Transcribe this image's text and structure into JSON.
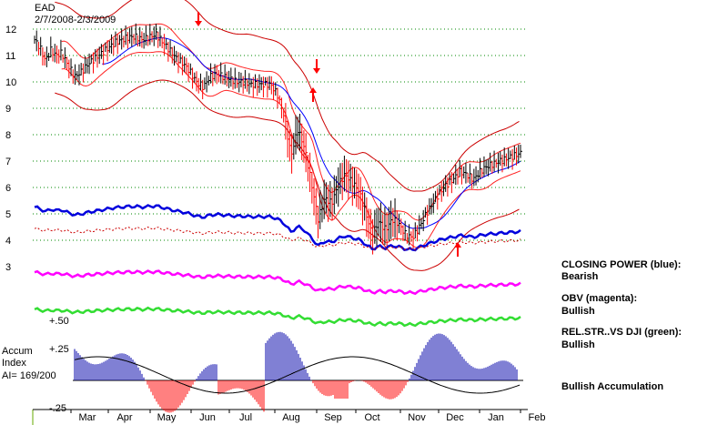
{
  "chart_data": {
    "type": "line",
    "title": "EAD",
    "subtitle": "2/7/2008-2/3/2009",
    "price_ticks": [
      "12",
      "11",
      "10",
      "9",
      "8",
      "7",
      "6",
      "5",
      "4",
      "3"
    ],
    "price_ylim": [
      3,
      12
    ],
    "x_months": [
      "Mar",
      "Apr",
      "May",
      "Jun",
      "Jul",
      "Aug",
      "Sep",
      "Oct",
      "Nov",
      "Dec",
      "Jan",
      "Feb"
    ],
    "grid": true,
    "price_series": {
      "name": "EAD",
      "x_day": [
        0,
        4,
        8,
        12,
        16,
        20,
        25,
        30,
        35,
        40,
        45,
        50,
        55,
        60,
        65,
        70,
        75,
        80,
        85,
        90,
        95,
        100,
        105,
        110,
        115,
        120,
        125,
        130,
        135,
        140,
        145,
        150,
        155,
        160,
        165,
        170,
        175,
        180,
        185,
        190,
        195,
        200,
        205,
        210,
        215,
        220,
        225,
        230,
        235,
        240,
        245,
        250,
        255,
        260,
        265,
        270,
        275,
        280,
        285,
        290,
        295,
        300,
        305,
        310,
        315,
        320,
        325,
        330,
        335,
        340,
        345,
        350,
        355,
        360
      ],
      "values": [
        11.6,
        11.3,
        10.8,
        11.2,
        11.0,
        11.1,
        10.6,
        10.2,
        10.4,
        10.7,
        10.9,
        11.1,
        11.3,
        11.5,
        11.6,
        11.7,
        11.7,
        11.6,
        11.7,
        11.8,
        11.5,
        11.2,
        10.9,
        10.7,
        10.4,
        10.0,
        9.8,
        10.2,
        10.3,
        10.2,
        10.1,
        10.0,
        10.0,
        9.9,
        9.9,
        9.9,
        9.9,
        9.5,
        8.7,
        7.2,
        8.2,
        7.5,
        6.2,
        4.8,
        5.6,
        5.4,
        6.1,
        6.5,
        6.2,
        5.9,
        5.1,
        4.2,
        4.7,
        4.4,
        4.8,
        4.6,
        4.2,
        4.1,
        4.5,
        5.0,
        5.4,
        5.8,
        6.1,
        6.3,
        6.6,
        6.5,
        6.3,
        6.6,
        6.8,
        6.9,
        7.0,
        7.1,
        7.2,
        7.3
      ]
    },
    "series": [
      {
        "name": "CLOSING POWER (blue)",
        "color": "#0000dd"
      },
      {
        "name": "OBV (magenta)",
        "color": "#ff00ff"
      },
      {
        "name": "REL.STR..VS DJI (green)",
        "color": "#33dd33"
      }
    ],
    "band_colors": {
      "outer": "#cc0000",
      "inner": "#ff2222",
      "ma": "#0000ff"
    },
    "accum_ticks": [
      "+.50",
      "+.25",
      "-.25"
    ],
    "accum_label": [
      "Accum",
      "Index",
      "AI= 169/200"
    ],
    "signals": {
      "sell": [
        "May",
        "Aug"
      ],
      "buy": [
        "Aug",
        "Dec"
      ]
    },
    "annotations": [
      {
        "label": "CLOSING POWER (blue):",
        "value": "Bearish"
      },
      {
        "label": "OBV (magenta):",
        "value": "Bullish"
      },
      {
        "label": "REL.STR..VS DJI (green):",
        "value": "Bullish"
      },
      {
        "label": "",
        "value": "Bullish Accumulation"
      }
    ]
  }
}
